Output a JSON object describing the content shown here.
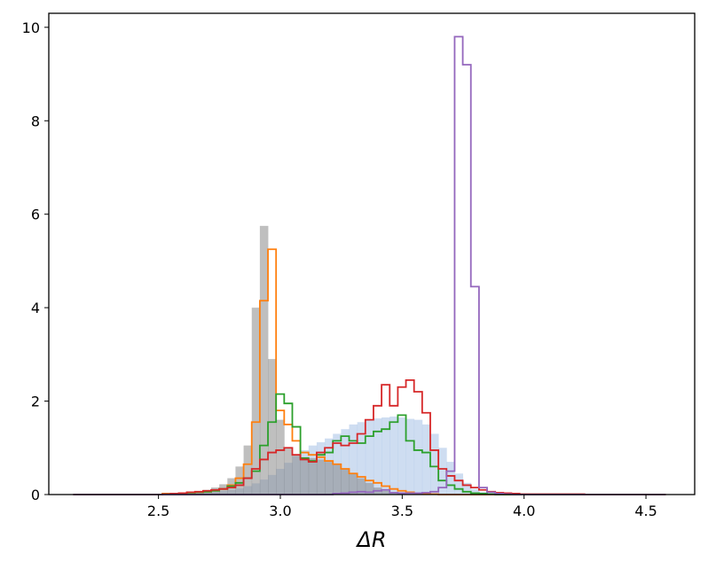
{
  "chart_data": {
    "type": "histogram",
    "title": "",
    "xlabel": "ΔR",
    "ylabel": "",
    "xlim": [
      2.05,
      4.7
    ],
    "ylim": [
      0,
      10.3
    ],
    "grid": false,
    "legend": "none",
    "xticks": [
      2.5,
      3.0,
      3.5,
      4.0,
      4.5
    ],
    "xtick_labels": [
      "2.5",
      "3.0",
      "3.5",
      "4.0",
      "4.5"
    ],
    "yticks": [
      0,
      2,
      4,
      6,
      8,
      10
    ],
    "ytick_labels": [
      "0",
      "2",
      "4",
      "6",
      "8",
      "10"
    ],
    "bin_start": 2.15,
    "bin_width": 0.0333,
    "series": [
      {
        "style": "filled",
        "color": "#aec7e8",
        "opacity": 0.6,
        "values": [
          0,
          0,
          0,
          0,
          0,
          0,
          0,
          0,
          0,
          0,
          0,
          0,
          0,
          0,
          0.02,
          0.03,
          0.05,
          0.06,
          0.08,
          0.1,
          0.13,
          0.18,
          0.24,
          0.32,
          0.42,
          0.55,
          0.68,
          0.82,
          0.95,
          1.05,
          1.12,
          1.2,
          1.3,
          1.4,
          1.5,
          1.55,
          1.6,
          1.63,
          1.65,
          1.67,
          1.65,
          1.62,
          1.6,
          1.5,
          1.3,
          1.0,
          0.7,
          0.45,
          0.25,
          0.12,
          0.06,
          0.03,
          0.01,
          0,
          0,
          0,
          0,
          0,
          0,
          0,
          0,
          0,
          0,
          0,
          0,
          0,
          0,
          0,
          0,
          0,
          0,
          0,
          0
        ]
      },
      {
        "style": "filled",
        "color": "#7f7f7f",
        "opacity": 0.5,
        "values": [
          0,
          0,
          0,
          0,
          0,
          0,
          0,
          0,
          0,
          0.01,
          0.01,
          0.02,
          0.02,
          0.03,
          0.05,
          0.07,
          0.1,
          0.15,
          0.22,
          0.35,
          0.6,
          1.05,
          4.0,
          5.75,
          2.9,
          1.6,
          1.0,
          0.85,
          0.8,
          0.78,
          0.75,
          0.7,
          0.65,
          0.55,
          0.45,
          0.35,
          0.25,
          0.15,
          0.08,
          0.04,
          0.02,
          0.01,
          0,
          0,
          0,
          0,
          0,
          0,
          0,
          0,
          0,
          0,
          0,
          0,
          0,
          0,
          0,
          0,
          0,
          0,
          0,
          0,
          0,
          0,
          0,
          0,
          0,
          0,
          0,
          0,
          0,
          0,
          0
        ]
      },
      {
        "style": "step",
        "color": "#ff7f0e",
        "values": [
          0,
          0,
          0,
          0,
          0,
          0,
          0,
          0,
          0,
          0,
          0,
          0.02,
          0.02,
          0.03,
          0.04,
          0.05,
          0.06,
          0.08,
          0.12,
          0.2,
          0.35,
          0.65,
          1.55,
          4.15,
          5.25,
          1.8,
          1.5,
          1.15,
          0.9,
          0.85,
          0.8,
          0.72,
          0.65,
          0.55,
          0.45,
          0.38,
          0.3,
          0.25,
          0.18,
          0.12,
          0.08,
          0.05,
          0.03,
          0.02,
          0.01,
          0,
          0,
          0,
          0,
          0,
          0,
          0,
          0,
          0,
          0,
          0,
          0,
          0,
          0,
          0,
          0,
          0,
          0,
          0,
          0,
          0,
          0,
          0,
          0,
          0,
          0,
          0,
          0
        ]
      },
      {
        "style": "step",
        "color": "#2ca02c",
        "values": [
          0,
          0,
          0,
          0,
          0,
          0,
          0,
          0,
          0,
          0,
          0,
          0.01,
          0.02,
          0.03,
          0.04,
          0.05,
          0.06,
          0.08,
          0.12,
          0.18,
          0.25,
          0.35,
          0.5,
          1.05,
          1.55,
          2.15,
          1.95,
          1.45,
          0.78,
          0.72,
          0.85,
          0.9,
          1.15,
          1.25,
          1.15,
          1.1,
          1.25,
          1.35,
          1.4,
          1.55,
          1.7,
          1.15,
          0.95,
          0.9,
          0.6,
          0.3,
          0.2,
          0.12,
          0.06,
          0.03,
          0.02,
          0.01,
          0,
          0,
          0,
          0,
          0,
          0,
          0,
          0,
          0,
          0,
          0,
          0,
          0,
          0,
          0,
          0,
          0,
          0,
          0,
          0,
          0
        ]
      },
      {
        "style": "step",
        "color": "#d62728",
        "values": [
          0,
          0,
          0,
          0,
          0,
          0,
          0,
          0,
          0,
          0,
          0,
          0.01,
          0.02,
          0.03,
          0.05,
          0.06,
          0.08,
          0.1,
          0.12,
          0.15,
          0.2,
          0.35,
          0.55,
          0.75,
          0.9,
          0.95,
          1.0,
          0.85,
          0.75,
          0.7,
          0.9,
          1.0,
          1.1,
          1.05,
          1.1,
          1.3,
          1.6,
          1.9,
          2.35,
          1.9,
          2.3,
          2.45,
          2.2,
          1.75,
          0.95,
          0.55,
          0.4,
          0.3,
          0.2,
          0.15,
          0.1,
          0.06,
          0.04,
          0.03,
          0.02,
          0.01,
          0.01,
          0.01,
          0.01,
          0.01,
          0.01,
          0.01,
          0.01,
          0,
          0,
          0,
          0,
          0,
          0,
          0,
          0,
          0,
          0
        ]
      },
      {
        "style": "step",
        "color": "#9467bd",
        "values": [
          0,
          0,
          0,
          0,
          0,
          0,
          0,
          0,
          0,
          0,
          0,
          0,
          0,
          0,
          0,
          0,
          0,
          0,
          0,
          0,
          0,
          0,
          0,
          0,
          0,
          0,
          0,
          0,
          0,
          0,
          0,
          0,
          0.02,
          0.03,
          0.05,
          0.06,
          0.05,
          0.08,
          0.1,
          0.04,
          0.03,
          0.03,
          0.03,
          0.04,
          0.06,
          0.15,
          0.5,
          9.8,
          9.2,
          4.45,
          0.15,
          0.05,
          0.02,
          0.01,
          0,
          0,
          0,
          0,
          0,
          0,
          0,
          0,
          0,
          0,
          0,
          0,
          0,
          0,
          0,
          0,
          0,
          0,
          0
        ]
      }
    ]
  }
}
